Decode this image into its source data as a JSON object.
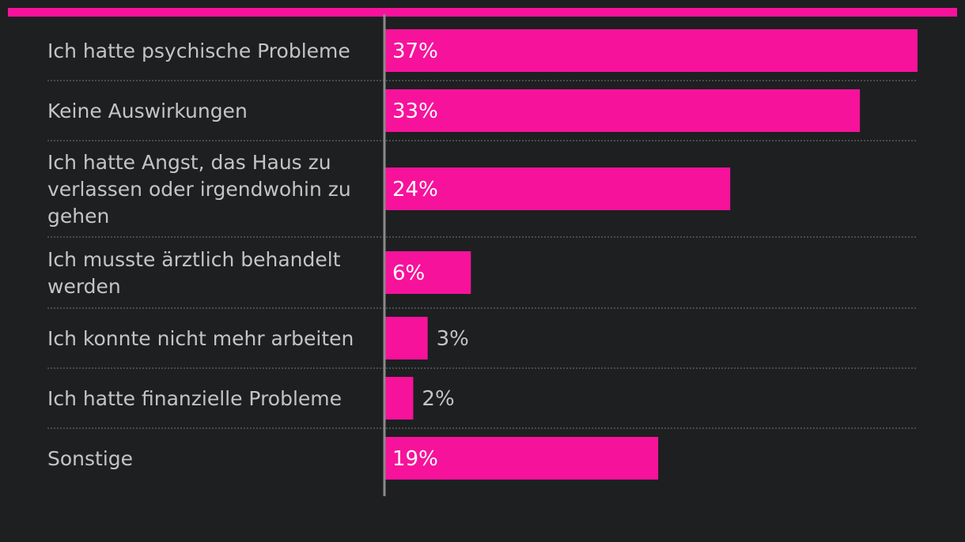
{
  "chart_data": {
    "type": "bar",
    "orientation": "horizontal",
    "categories": [
      "Ich hatte psychische Probleme",
      "Keine Auswirkungen",
      "Ich hatte Angst, das Haus zu verlassen oder irgendwohin zu gehen",
      "Ich musste ärztlich behandelt werden",
      "Ich konnte nicht mehr arbeiten",
      "Ich hatte finanzielle Probleme",
      "Sonstige"
    ],
    "category_lines": [
      [
        "Ich hatte psychische Probleme"
      ],
      [
        "Keine Auswirkungen"
      ],
      [
        "Ich hatte Angst, das Haus zu",
        "verlassen oder irgendwohin zu",
        "gehen"
      ],
      [
        "Ich musste ärztlich behandelt",
        "werden"
      ],
      [
        "Ich konnte nicht mehr arbeiten"
      ],
      [
        "Ich hatte finanzielle Probleme"
      ],
      [
        "Sonstige"
      ]
    ],
    "values": [
      37,
      33,
      24,
      6,
      3,
      2,
      19
    ],
    "value_labels": [
      "37%",
      "33%",
      "24%",
      "6%",
      "3%",
      "2%",
      "19%"
    ],
    "unit": "%",
    "xlim": [
      0,
      37
    ],
    "title": "",
    "xlabel": "",
    "ylabel": "",
    "grid": false,
    "legend": "none",
    "colors": {
      "bar": "#f7129b",
      "accent_bar": "#f7129b",
      "background": "#1e1f21",
      "label_text": "#c4c4c4",
      "value_text_inside": "#ffffff",
      "axis_line": "#8a8a8a",
      "separator": "#5a5a5a"
    }
  }
}
